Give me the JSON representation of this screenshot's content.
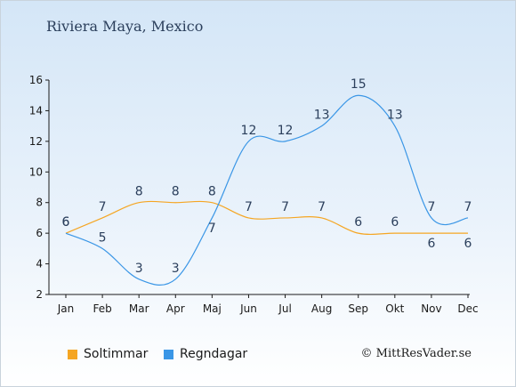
{
  "chart_data": {
    "type": "line",
    "title": "Riviera Maya, Mexico",
    "categories": [
      "Jan",
      "Feb",
      "Mar",
      "Apr",
      "Maj",
      "Jun",
      "Jul",
      "Aug",
      "Sep",
      "Okt",
      "Nov",
      "Dec"
    ],
    "series": [
      {
        "name": "Soltimmar",
        "color": "#f5a623",
        "values": [
          6,
          7,
          8,
          8,
          8,
          7,
          7,
          7,
          6,
          6,
          6,
          6
        ]
      },
      {
        "name": "Regndagar",
        "color": "#3a96e6",
        "values": [
          6,
          5,
          3,
          3,
          7,
          12,
          12,
          13,
          15,
          13,
          7,
          7
        ]
      }
    ],
    "ylim": [
      2,
      16
    ],
    "yticks": [
      2,
      4,
      6,
      8,
      10,
      12,
      14,
      16
    ],
    "grid": false,
    "legend": "bottom-left"
  },
  "copyright": "© MittResVader.se"
}
